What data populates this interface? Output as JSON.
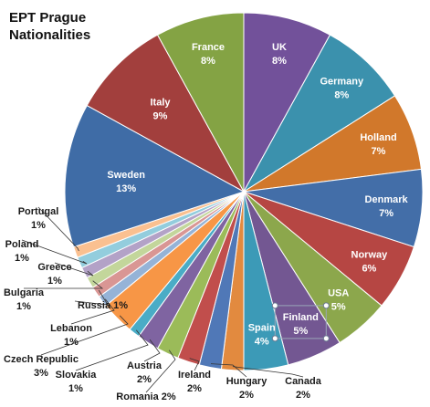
{
  "chart_data": {
    "type": "pie",
    "title": [
      "EPT Prague",
      "Nationalities"
    ],
    "slices": [
      {
        "label": "UK",
        "value": 8,
        "color": "#72519a"
      },
      {
        "label": "Germany",
        "value": 8,
        "color": "#3b91ad"
      },
      {
        "label": "Holland",
        "value": 7,
        "color": "#d1782b"
      },
      {
        "label": "Denmark",
        "value": 7,
        "color": "#436ea8"
      },
      {
        "label": "Norway",
        "value": 6,
        "color": "#b64643"
      },
      {
        "label": "USA",
        "value": 5,
        "color": "#8ca74c"
      },
      {
        "label": "Finland",
        "value": 5,
        "color": "#735792"
      },
      {
        "label": "Spain",
        "value": 4,
        "color": "#3c9ab7"
      },
      {
        "label": "Canada",
        "value": 2,
        "color": "#e28a3f"
      },
      {
        "label": "Hungary",
        "value": 2,
        "color": "#5078b7"
      },
      {
        "label": "Ireland",
        "value": 2,
        "color": "#c14e4c"
      },
      {
        "label": "Romania",
        "value": 2,
        "color": "#9bbb59"
      },
      {
        "label": "Austria",
        "value": 2,
        "color": "#7f64a1"
      },
      {
        "label": "Slovakia",
        "value": 1,
        "color": "#4aacc6"
      },
      {
        "label": "Czech Republic",
        "value": 3,
        "color": "#f79646"
      },
      {
        "label": "Lebanon",
        "value": 1,
        "color": "#95b3d7"
      },
      {
        "label": "Russia",
        "value": 1,
        "color": "#d99694"
      },
      {
        "label": "Bulgaria",
        "value": 1,
        "color": "#c3d69b"
      },
      {
        "label": "Greece",
        "value": 1,
        "color": "#b3a2c7"
      },
      {
        "label": "Poland",
        "value": 1,
        "color": "#93cddd"
      },
      {
        "label": "Portugal",
        "value": 1,
        "color": "#fac090"
      },
      {
        "label": "Sweden",
        "value": 13,
        "color": "#3f6ca6"
      },
      {
        "label": "Italy",
        "value": 9,
        "color": "#a23f3d"
      },
      {
        "label": "France",
        "value": 8,
        "color": "#84a344"
      }
    ],
    "labels": [
      {
        "name": "UK",
        "pct": "8%",
        "inside": true
      },
      {
        "name": "Germany",
        "pct": "8%",
        "inside": true
      },
      {
        "name": "Holland",
        "pct": "7%",
        "inside": true
      },
      {
        "name": "Denmark",
        "pct": "7%",
        "inside": true
      },
      {
        "name": "Norway",
        "pct": "6%",
        "inside": true
      },
      {
        "name": "USA",
        "pct": "5%",
        "inside": true
      },
      {
        "name": "Finland",
        "pct": "5%",
        "inside": true
      },
      {
        "name": "Spain",
        "pct": "4%",
        "inside": true
      },
      {
        "name": "Canada",
        "pct": "2%",
        "inside": false
      },
      {
        "name": "Hungary",
        "pct": "2%",
        "inside": false
      },
      {
        "name": "Ireland",
        "pct": "2%",
        "inside": false
      },
      {
        "name": "Romania 2%",
        "pct": "",
        "inside": false
      },
      {
        "name": "Austria",
        "pct": "2%",
        "inside": false
      },
      {
        "name": "Slovakia",
        "pct": "1%",
        "inside": false
      },
      {
        "name": "Czech Republic",
        "pct": "3%",
        "inside": false
      },
      {
        "name": "Lebanon",
        "pct": "1%",
        "inside": false
      },
      {
        "name": "Russia 1%",
        "pct": "",
        "inside": false
      },
      {
        "name": "Bulgaria",
        "pct": "1%",
        "inside": false
      },
      {
        "name": "Greece",
        "pct": "1%",
        "inside": false
      },
      {
        "name": "Poland",
        "pct": "1%",
        "inside": false
      },
      {
        "name": "Portugal",
        "pct": "1%",
        "inside": false
      },
      {
        "name": "Sweden",
        "pct": "13%",
        "inside": true
      },
      {
        "name": "Italy",
        "pct": "9%",
        "inside": true
      },
      {
        "name": "France",
        "pct": "8%",
        "inside": true
      }
    ],
    "legend": "none",
    "selected_slice": "Finland"
  }
}
